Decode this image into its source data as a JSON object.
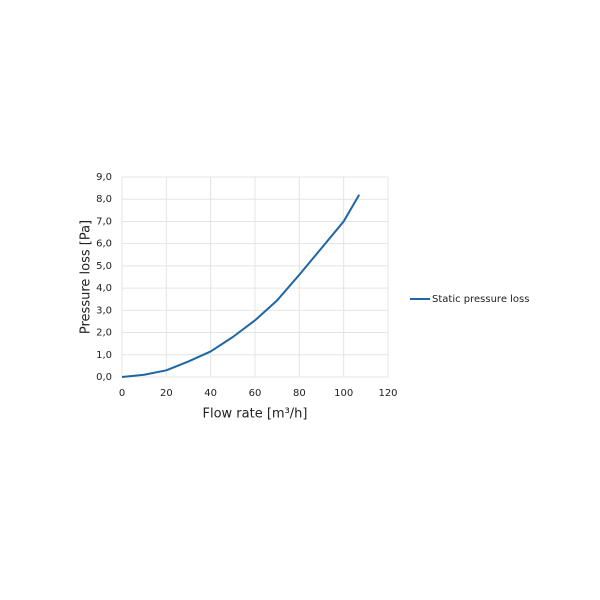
{
  "chart_data": {
    "type": "line",
    "x_label": "Flow rate [m³/h]",
    "y_label": "Pressure loss [Pa]",
    "x": [
      0,
      10,
      20,
      30,
      40,
      50,
      60,
      70,
      80,
      90,
      100,
      107
    ],
    "series": [
      {
        "name": "Static pressure loss",
        "color": "#1f67a3",
        "values": [
          0,
          0.1,
          0.3,
          0.7,
          1.15,
          1.8,
          2.55,
          3.45,
          4.6,
          5.8,
          7.0,
          8.2
        ]
      }
    ],
    "xlim": [
      0,
      120
    ],
    "xticks": [
      0,
      20,
      40,
      60,
      80,
      100,
      120
    ],
    "ylim": [
      0,
      9
    ],
    "yticks": [
      {
        "value": 0,
        "label": "0,0"
      },
      {
        "value": 1,
        "label": "1,0"
      },
      {
        "value": 2,
        "label": "2,0"
      },
      {
        "value": 3,
        "label": "3,0"
      },
      {
        "value": 4,
        "label": "4,0"
      },
      {
        "value": 5,
        "label": "5,0"
      },
      {
        "value": 6,
        "label": "6,0"
      },
      {
        "value": 7,
        "label": "7,0"
      },
      {
        "value": 8,
        "label": "8,0"
      },
      {
        "value": 9,
        "label": "9,0"
      }
    ],
    "grid": true,
    "legend": "right"
  }
}
